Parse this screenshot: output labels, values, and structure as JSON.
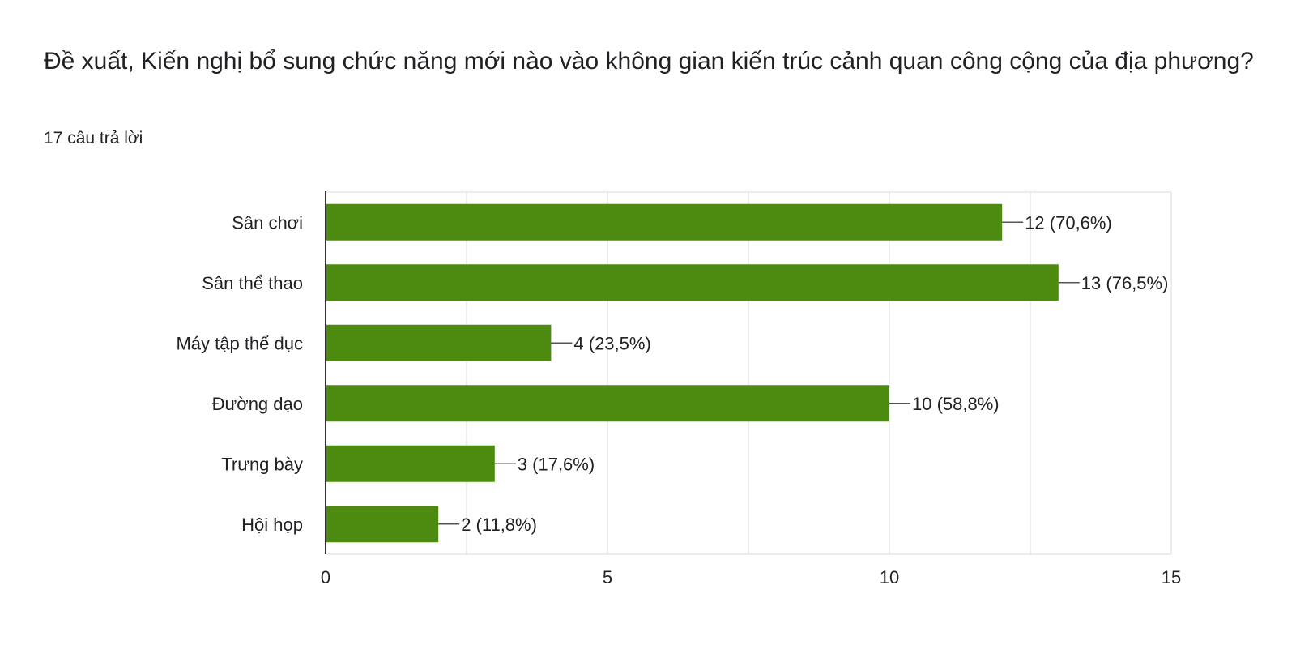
{
  "header": {
    "title": "Đề xuất, Kiến nghị bổ sung chức năng mới nào vào không gian kiến trúc cảnh quan công cộng của địa phương?",
    "response_count": "17 câu trả lời"
  },
  "colors": {
    "bar": "#4c8a10",
    "grid": "#e6e6e6",
    "axis": "#333333"
  },
  "chart_data": {
    "type": "bar",
    "orientation": "horizontal",
    "categories": [
      "Sân chơi",
      "Sân thể thao",
      "Máy tập thể dục",
      "Đường dạo",
      "Trưng bày",
      "Hội họp"
    ],
    "values": [
      12,
      13,
      4,
      10,
      3,
      2
    ],
    "data_labels": [
      "12 (70,6%)",
      "13 (76,5%)",
      "4 (23,5%)",
      "10 (58,8%)",
      "3 (17,6%)",
      "2 (11,8%)"
    ],
    "xlim": [
      0,
      15
    ],
    "xticks": [
      0,
      5,
      10,
      15
    ],
    "grid": true,
    "legend": "none"
  }
}
